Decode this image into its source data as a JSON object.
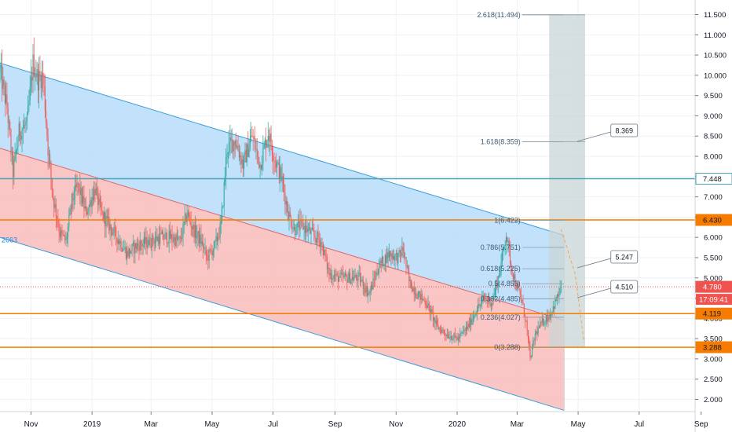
{
  "chart_data": {
    "type": "candlestick",
    "title": "",
    "xlabel": "",
    "ylabel": "",
    "ylim": [
      1.6,
      11.8
    ],
    "xlim": [
      "2018-10-01",
      "2020-09-25"
    ],
    "price_axis": {
      "ticks": [
        "11.500",
        "11.000",
        "10.500",
        "10.000",
        "9.500",
        "9.000",
        "8.500",
        "8.000",
        "7.500",
        "7.000",
        "6.500",
        "6.000",
        "5.500",
        "5.000",
        "4.500",
        "4.000",
        "3.500",
        "3.000",
        "2.500",
        "2.000"
      ]
    },
    "time_axis": {
      "ticks": [
        {
          "label": "Nov",
          "date": "2018-11-01"
        },
        {
          "label": "2019",
          "date": "2019-01-01"
        },
        {
          "label": "Mar",
          "date": "2019-03-01"
        },
        {
          "label": "May",
          "date": "2019-05-01"
        },
        {
          "label": "Jul",
          "date": "2019-07-01"
        },
        {
          "label": "Sep",
          "date": "2019-09-01"
        },
        {
          "label": "Nov",
          "date": "2019-11-01"
        },
        {
          "label": "2020",
          "date": "2020-01-01"
        },
        {
          "label": "Mar",
          "date": "2020-03-01"
        },
        {
          "label": "May",
          "date": "2020-05-01"
        },
        {
          "label": "Jul",
          "date": "2020-07-01"
        },
        {
          "label": "Sep",
          "date": "2020-09-01"
        }
      ]
    },
    "price_path": [
      [
        "2018-10-01",
        10.1
      ],
      [
        "2018-10-08",
        9.2
      ],
      [
        "2018-10-14",
        7.6
      ],
      [
        "2018-10-20",
        8.6
      ],
      [
        "2018-10-28",
        8.8
      ],
      [
        "2018-11-03",
        10.3
      ],
      [
        "2018-11-08",
        9.9
      ],
      [
        "2018-11-13",
        10.0
      ],
      [
        "2018-11-18",
        8.2
      ],
      [
        "2018-11-23",
        7.0
      ],
      [
        "2018-11-30",
        6.1
      ],
      [
        "2018-12-06",
        5.9
      ],
      [
        "2018-12-12",
        6.9
      ],
      [
        "2018-12-18",
        7.3
      ],
      [
        "2018-12-26",
        6.6
      ],
      [
        "2019-01-04",
        7.2
      ],
      [
        "2019-01-10",
        6.6
      ],
      [
        "2019-01-18",
        6.3
      ],
      [
        "2019-01-26",
        6.0
      ],
      [
        "2019-02-05",
        5.6
      ],
      [
        "2019-02-15",
        5.8
      ],
      [
        "2019-02-28",
        5.9
      ],
      [
        "2019-03-10",
        6.0
      ],
      [
        "2019-03-20",
        6.0
      ],
      [
        "2019-03-30",
        5.9
      ],
      [
        "2019-04-06",
        6.6
      ],
      [
        "2019-04-12",
        6.2
      ],
      [
        "2019-04-20",
        5.9
      ],
      [
        "2019-04-26",
        5.5
      ],
      [
        "2019-05-04",
        5.8
      ],
      [
        "2019-05-10",
        6.3
      ],
      [
        "2019-05-16",
        8.2
      ],
      [
        "2019-05-24",
        8.4
      ],
      [
        "2019-06-01",
        7.8
      ],
      [
        "2019-06-10",
        8.5
      ],
      [
        "2019-06-18",
        7.8
      ],
      [
        "2019-06-26",
        8.6
      ],
      [
        "2019-07-02",
        8.0
      ],
      [
        "2019-07-10",
        7.4
      ],
      [
        "2019-07-16",
        6.6
      ],
      [
        "2019-07-22",
        6.2
      ],
      [
        "2019-07-30",
        6.3
      ],
      [
        "2019-08-08",
        6.1
      ],
      [
        "2019-08-18",
        5.9
      ],
      [
        "2019-08-26",
        5.1
      ],
      [
        "2019-09-05",
        5.0
      ],
      [
        "2019-09-15",
        5.0
      ],
      [
        "2019-09-25",
        5.0
      ],
      [
        "2019-10-05",
        4.6
      ],
      [
        "2019-10-15",
        5.3
      ],
      [
        "2019-10-25",
        5.6
      ],
      [
        "2019-11-03",
        5.5
      ],
      [
        "2019-11-08",
        5.7
      ],
      [
        "2019-11-14",
        4.9
      ],
      [
        "2019-11-22",
        4.6
      ],
      [
        "2019-12-01",
        4.4
      ],
      [
        "2019-12-12",
        3.8
      ],
      [
        "2019-12-22",
        3.6
      ],
      [
        "2020-01-02",
        3.5
      ],
      [
        "2020-01-12",
        3.8
      ],
      [
        "2020-01-20",
        4.2
      ],
      [
        "2020-01-28",
        4.5
      ],
      [
        "2020-02-05",
        4.4
      ],
      [
        "2020-02-13",
        5.2
      ],
      [
        "2020-02-19",
        6.1
      ],
      [
        "2020-02-24",
        5.3
      ],
      [
        "2020-02-29",
        4.8
      ],
      [
        "2020-03-05",
        4.5
      ],
      [
        "2020-03-10",
        3.9
      ],
      [
        "2020-03-14",
        3.0
      ],
      [
        "2020-03-19",
        3.6
      ],
      [
        "2020-03-26",
        3.9
      ],
      [
        "2020-04-03",
        4.1
      ],
      [
        "2020-04-10",
        4.5
      ],
      [
        "2020-04-14",
        4.78
      ]
    ],
    "channel": {
      "upper_line": [
        [
          "2018-10-01",
          10.3
        ],
        [
          "2020-04-17",
          6.05
        ]
      ],
      "middle_line": [
        [
          "2018-10-01",
          8.2
        ],
        [
          "2020-04-17",
          3.95
        ]
      ],
      "lower_line": [
        [
          "2018-10-01",
          6.0
        ],
        [
          "2020-04-17",
          1.73
        ]
      ],
      "upper_fill": "#bbdefb",
      "lower_fill": "#f8bbbb",
      "upper_stroke": "#3d9ed9",
      "lower_stroke": "#e06666",
      "left_label": "2663"
    },
    "fibonacci": {
      "start_date": "2020-03-06",
      "end_date": "2020-04-17",
      "levels": [
        {
          "ratio": 0,
          "value": 3.288,
          "label": "0(3.288)"
        },
        {
          "ratio": 0.236,
          "value": 4.027,
          "label": "0.236(4.027)"
        },
        {
          "ratio": 0.382,
          "value": 4.485,
          "label": "0.382(4.485)"
        },
        {
          "ratio": 0.5,
          "value": 4.855,
          "label": "0.5(4.855)"
        },
        {
          "ratio": 0.618,
          "value": 5.225,
          "label": "0.618(5.225)"
        },
        {
          "ratio": 0.786,
          "value": 5.751,
          "label": "0.786(5.751)"
        },
        {
          "ratio": 1,
          "value": 6.422,
          "label": "1(6.422)"
        },
        {
          "ratio": 1.618,
          "value": 8.359,
          "label": "1.618(8.359)"
        },
        {
          "ratio": 2.618,
          "value": 11.494,
          "label": "2.618(11.494)"
        }
      ]
    },
    "projection_box": {
      "from": "2020-04-02",
      "to": "2020-05-08",
      "y_from": 3.288,
      "y_to": 11.494,
      "fill": "#c9d6d6"
    },
    "projection_path": [
      [
        "2020-04-14",
        6.2
      ],
      [
        "2020-04-28",
        5.1
      ],
      [
        "2020-05-07",
        3.4
      ]
    ],
    "horizontal_lines": [
      {
        "value": 7.448,
        "label": "7.448",
        "color": "#4aa3ba",
        "style": "solid",
        "badge_bg": "#ffffff",
        "badge_fg": "#131722"
      },
      {
        "value": 6.43,
        "label": "6.430",
        "color": "#f57c00",
        "style": "solid",
        "badge_bg": "#f57c00",
        "badge_fg": "#131722"
      },
      {
        "value": 4.119,
        "label": "4.119",
        "color": "#f57c00",
        "style": "solid",
        "badge_bg": "#f57c00",
        "badge_fg": "#131722"
      },
      {
        "value": 3.288,
        "label": "3.288",
        "color": "#f57c00",
        "style": "solid",
        "badge_bg": "#f57c00",
        "badge_fg": "#131722"
      },
      {
        "value": 4.78,
        "label": "4.780",
        "color": "#ef5350",
        "style": "dotted",
        "badge_bg": "#ef5350",
        "badge_fg": "#ffffff"
      }
    ],
    "countdown_label": "17:09:41",
    "callouts": [
      {
        "text": "8.369",
        "value": 8.369,
        "date": "2020-05-18"
      },
      {
        "text": "5.247",
        "value": 5.247,
        "date": "2020-05-18"
      },
      {
        "text": "4.510",
        "value": 4.51,
        "date": "2020-05-18"
      }
    ],
    "colors": {
      "up": "#26a69a",
      "down": "#ef5350",
      "grid": "#eef0f3",
      "axis_text": "#131722"
    }
  }
}
